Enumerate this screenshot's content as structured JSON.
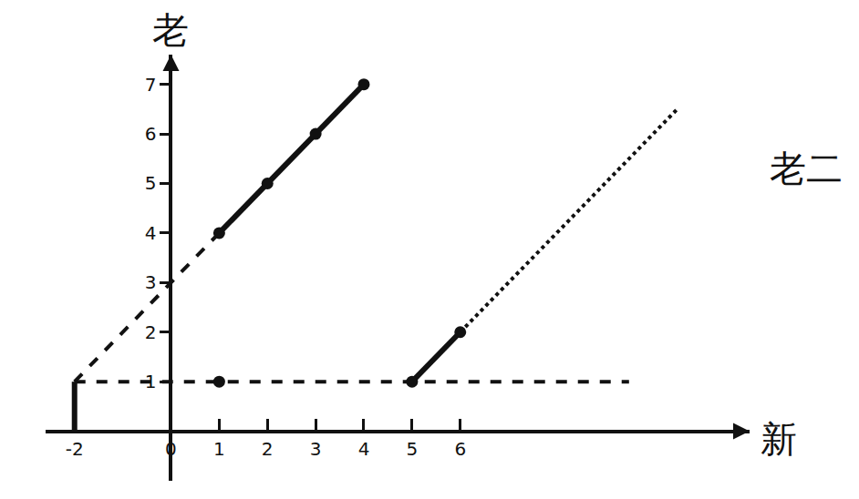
{
  "chart_data": {
    "type": "line",
    "x_label": "新",
    "y_label": "老",
    "annotations": [
      {
        "text": "老二",
        "x": 12,
        "y": 5.3
      }
    ],
    "xlim": [
      -2.6,
      12
    ],
    "ylim": [
      -1,
      7.6
    ],
    "xticks": [
      -2,
      0,
      1,
      2,
      3,
      4,
      5,
      6
    ],
    "yticks": [
      1,
      2,
      3,
      4,
      5,
      6,
      7
    ],
    "grid": false,
    "series": [
      {
        "color": "#111111",
        "line_style": "solid",
        "marker": "circle",
        "x": [
          1,
          2,
          3,
          4
        ],
        "values": [
          4,
          5,
          6,
          7
        ]
      },
      {
        "color": "#111111",
        "line_style": "dash",
        "marker": "none",
        "x": [
          -2,
          1
        ],
        "values": [
          1,
          4
        ]
      },
      {
        "color": "#111111",
        "line_style": "solid",
        "marker": "circle",
        "x": [
          5,
          6
        ],
        "values": [
          1,
          2
        ]
      },
      {
        "color": "#111111",
        "line_style": "dot",
        "marker": "none",
        "x": [
          6,
          10.5
        ],
        "values": [
          2,
          6.5
        ]
      },
      {
        "color": "#111111",
        "line_style": "dash",
        "marker": "none",
        "x": [
          -2,
          9.5
        ],
        "values": [
          1,
          1
        ]
      },
      {
        "color": "#111111",
        "line_style": "none",
        "marker": "circle",
        "x": [
          1
        ],
        "values": [
          1
        ]
      },
      {
        "color": "#111111",
        "line_style": "solid",
        "marker": "none",
        "x": [
          -2,
          -2
        ],
        "values": [
          0,
          1
        ]
      }
    ]
  }
}
